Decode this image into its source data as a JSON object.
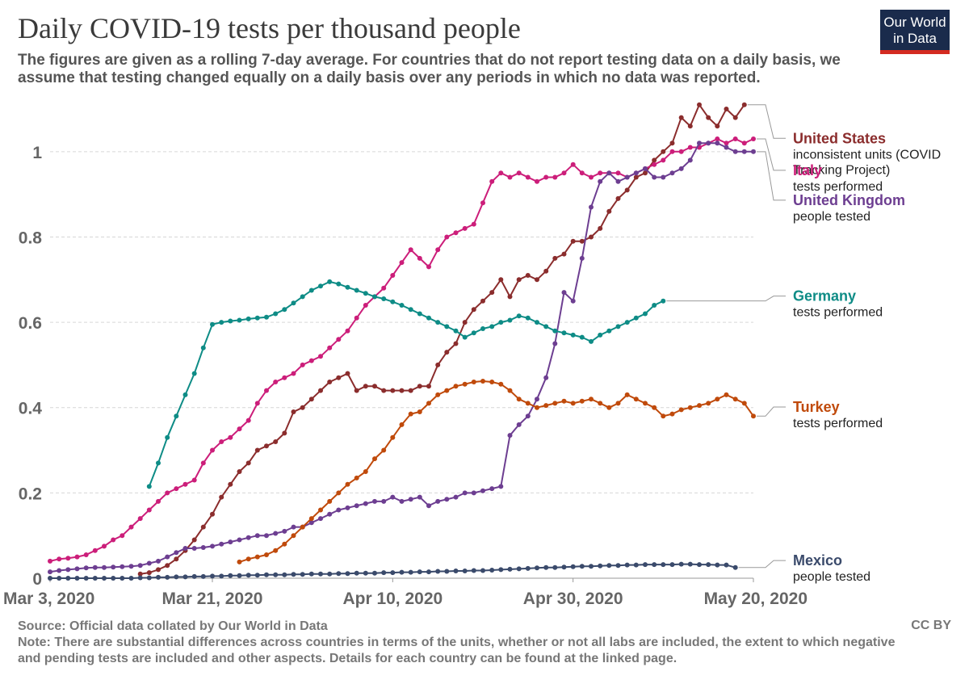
{
  "title": "Daily COVID-19 tests per thousand people",
  "subtitle_lines": [
    "The figures are given as a rolling 7-day average. For countries that do not report testing data on a daily basis, we",
    "assume that testing changed equally on a daily basis over any periods in which no data was reported."
  ],
  "logo": {
    "line1": "Our World",
    "line2": "in Data"
  },
  "footer": {
    "source": "Source: Official data collated by Our World in Data",
    "note1": "Note: There are substantial differences across countries in terms of the units, whether or not all labs are included, the extent to which negative",
    "note2": "and pending tests are included and other aspects. Details for each country can be found at the linked page.",
    "license": "CC BY"
  },
  "chart_data": {
    "type": "line",
    "title": "Daily COVID-19 tests per thousand people",
    "x_unit": "days since Mar 3, 2020",
    "xlim": [
      0,
      78
    ],
    "ylim": [
      0,
      1.1
    ],
    "y_ticks": [
      {
        "value": 0,
        "label": "0"
      },
      {
        "value": 0.2,
        "label": "0.2"
      },
      {
        "value": 0.4,
        "label": "0.4"
      },
      {
        "value": 0.6,
        "label": "0.6"
      },
      {
        "value": 0.8,
        "label": "0.8"
      },
      {
        "value": 1,
        "label": "1"
      }
    ],
    "x_ticks": [
      {
        "value": 0,
        "label": "Mar 3, 2020"
      },
      {
        "value": 18,
        "label": "Mar 21, 2020"
      },
      {
        "value": 38,
        "label": "Apr 10, 2020"
      },
      {
        "value": 58,
        "label": "Apr 30, 2020"
      },
      {
        "value": 78,
        "label": "May 20, 2020"
      }
    ],
    "grid": true,
    "series": [
      {
        "name": "United States",
        "unit_label": "inconsistent units (COVID",
        "unit_label2": "Tracking Project)",
        "color": "#8b2d2d",
        "label_y": 1.02,
        "x": [
          10,
          11,
          12,
          13,
          14,
          15,
          16,
          17,
          18,
          19,
          20,
          21,
          22,
          23,
          24,
          25,
          26,
          27,
          28,
          29,
          30,
          31,
          32,
          33,
          34,
          35,
          36,
          37,
          38,
          39,
          40,
          41,
          42,
          43,
          44,
          45,
          46,
          47,
          48,
          49,
          50,
          51,
          52,
          53,
          54,
          55,
          56,
          57,
          58,
          59,
          60,
          61,
          62,
          63,
          64,
          65,
          66,
          67,
          68,
          69,
          70,
          71,
          72,
          73,
          74,
          75,
          76,
          77
        ],
        "values": [
          0.01,
          0.013,
          0.02,
          0.03,
          0.045,
          0.065,
          0.09,
          0.12,
          0.15,
          0.19,
          0.22,
          0.25,
          0.27,
          0.3,
          0.31,
          0.32,
          0.34,
          0.39,
          0.4,
          0.42,
          0.44,
          0.46,
          0.47,
          0.48,
          0.44,
          0.45,
          0.45,
          0.44,
          0.44,
          0.44,
          0.44,
          0.45,
          0.45,
          0.5,
          0.53,
          0.55,
          0.6,
          0.63,
          0.65,
          0.67,
          0.7,
          0.66,
          0.7,
          0.71,
          0.7,
          0.72,
          0.75,
          0.76,
          0.79,
          0.79,
          0.8,
          0.82,
          0.86,
          0.89,
          0.91,
          0.94,
          0.95,
          0.98,
          1.0,
          1.02,
          1.08,
          1.06,
          1.11,
          1.08,
          1.06,
          1.1,
          1.08,
          1.11
        ]
      },
      {
        "name": "Italy",
        "unit_label": "tests performed",
        "color": "#cc1e7a",
        "label_y": 0.945,
        "x": [
          0,
          1,
          2,
          3,
          4,
          5,
          6,
          7,
          8,
          9,
          10,
          11,
          12,
          13,
          14,
          15,
          16,
          17,
          18,
          19,
          20,
          21,
          22,
          23,
          24,
          25,
          26,
          27,
          28,
          29,
          30,
          31,
          32,
          33,
          34,
          35,
          36,
          37,
          38,
          39,
          40,
          41,
          42,
          43,
          44,
          45,
          46,
          47,
          48,
          49,
          50,
          51,
          52,
          53,
          54,
          55,
          56,
          57,
          58,
          59,
          60,
          61,
          62,
          63,
          64,
          65,
          66,
          67,
          68,
          69,
          70,
          71,
          72,
          73,
          74,
          75,
          76,
          77,
          78
        ],
        "values": [
          0.04,
          0.045,
          0.047,
          0.05,
          0.055,
          0.065,
          0.075,
          0.09,
          0.1,
          0.12,
          0.14,
          0.16,
          0.18,
          0.2,
          0.21,
          0.22,
          0.23,
          0.27,
          0.3,
          0.32,
          0.33,
          0.35,
          0.37,
          0.41,
          0.44,
          0.46,
          0.47,
          0.48,
          0.5,
          0.51,
          0.52,
          0.54,
          0.56,
          0.58,
          0.61,
          0.64,
          0.66,
          0.68,
          0.71,
          0.74,
          0.77,
          0.75,
          0.73,
          0.77,
          0.8,
          0.81,
          0.82,
          0.83,
          0.88,
          0.93,
          0.95,
          0.94,
          0.95,
          0.94,
          0.93,
          0.94,
          0.94,
          0.95,
          0.97,
          0.95,
          0.94,
          0.95,
          0.95,
          0.95,
          0.94,
          0.95,
          0.96,
          0.97,
          0.98,
          1.0,
          1.0,
          1.01,
          1.01,
          1.02,
          1.03,
          1.02,
          1.03,
          1.02,
          1.03
        ]
      },
      {
        "name": "United Kingdom",
        "unit_label": "people tested",
        "color": "#6d3e91",
        "label_y": 0.875,
        "x": [
          0,
          1,
          2,
          3,
          4,
          5,
          6,
          7,
          8,
          9,
          10,
          11,
          12,
          13,
          14,
          15,
          16,
          17,
          18,
          19,
          20,
          21,
          22,
          23,
          24,
          25,
          26,
          27,
          28,
          29,
          30,
          31,
          32,
          33,
          34,
          35,
          36,
          37,
          38,
          39,
          40,
          41,
          42,
          43,
          44,
          45,
          46,
          47,
          48,
          49,
          50,
          51,
          52,
          53,
          54,
          55,
          56,
          57,
          58,
          59,
          60,
          61,
          62,
          63,
          64,
          65,
          66,
          67,
          68,
          69,
          70,
          71,
          72,
          73,
          74,
          75,
          76,
          77,
          78
        ],
        "values": [
          0.015,
          0.018,
          0.02,
          0.022,
          0.024,
          0.025,
          0.025,
          0.026,
          0.027,
          0.028,
          0.03,
          0.035,
          0.04,
          0.05,
          0.06,
          0.07,
          0.07,
          0.072,
          0.075,
          0.08,
          0.085,
          0.09,
          0.095,
          0.1,
          0.1,
          0.105,
          0.11,
          0.12,
          0.12,
          0.13,
          0.14,
          0.15,
          0.16,
          0.165,
          0.17,
          0.175,
          0.18,
          0.18,
          0.19,
          0.18,
          0.185,
          0.19,
          0.17,
          0.18,
          0.185,
          0.19,
          0.2,
          0.2,
          0.205,
          0.21,
          0.215,
          0.335,
          0.36,
          0.38,
          0.42,
          0.47,
          0.55,
          0.67,
          0.65,
          0.75,
          0.87,
          0.93,
          0.95,
          0.93,
          0.94,
          0.95,
          0.96,
          0.94,
          0.94,
          0.95,
          0.96,
          0.98,
          1.02,
          1.02,
          1.02,
          1.01,
          1.0,
          1.0,
          1.0
        ]
      },
      {
        "name": "Germany",
        "unit_label": "tests performed",
        "color": "#0e8c86",
        "label_y": 0.65,
        "x": [
          11,
          12,
          13,
          14,
          15,
          16,
          17,
          18,
          19,
          20,
          21,
          22,
          23,
          24,
          25,
          26,
          27,
          28,
          29,
          30,
          31,
          32,
          33,
          34,
          35,
          36,
          37,
          38,
          39,
          40,
          41,
          42,
          43,
          44,
          45,
          46,
          47,
          48,
          49,
          50,
          51,
          52,
          53,
          54,
          55,
          56,
          57,
          58,
          59,
          60,
          61,
          62,
          63,
          64,
          65,
          66,
          67,
          68
        ],
        "values": [
          0.215,
          0.27,
          0.33,
          0.38,
          0.43,
          0.48,
          0.54,
          0.595,
          0.6,
          0.603,
          0.605,
          0.608,
          0.61,
          0.612,
          0.62,
          0.63,
          0.645,
          0.66,
          0.675,
          0.685,
          0.695,
          0.69,
          0.682,
          0.675,
          0.668,
          0.66,
          0.655,
          0.648,
          0.64,
          0.63,
          0.62,
          0.61,
          0.6,
          0.59,
          0.58,
          0.565,
          0.575,
          0.585,
          0.59,
          0.6,
          0.605,
          0.615,
          0.61,
          0.6,
          0.59,
          0.58,
          0.575,
          0.57,
          0.565,
          0.555,
          0.57,
          0.58,
          0.59,
          0.6,
          0.61,
          0.62,
          0.64,
          0.65
        ]
      },
      {
        "name": "Turkey",
        "unit_label": "tests performed",
        "color": "#c04a0b",
        "label_y": 0.39,
        "x": [
          21,
          22,
          23,
          24,
          25,
          26,
          27,
          28,
          29,
          30,
          31,
          32,
          33,
          34,
          35,
          36,
          37,
          38,
          39,
          40,
          41,
          42,
          43,
          44,
          45,
          46,
          47,
          48,
          49,
          50,
          51,
          52,
          53,
          54,
          55,
          56,
          57,
          58,
          59,
          60,
          61,
          62,
          63,
          64,
          65,
          66,
          67,
          68,
          69,
          70,
          71,
          72,
          73,
          74,
          75,
          76,
          77,
          78
        ],
        "values": [
          0.038,
          0.045,
          0.05,
          0.055,
          0.065,
          0.08,
          0.1,
          0.12,
          0.14,
          0.16,
          0.18,
          0.2,
          0.22,
          0.235,
          0.25,
          0.28,
          0.3,
          0.33,
          0.36,
          0.385,
          0.39,
          0.41,
          0.43,
          0.44,
          0.45,
          0.455,
          0.46,
          0.462,
          0.46,
          0.455,
          0.44,
          0.42,
          0.41,
          0.4,
          0.405,
          0.41,
          0.415,
          0.41,
          0.415,
          0.42,
          0.41,
          0.4,
          0.41,
          0.43,
          0.42,
          0.41,
          0.4,
          0.38,
          0.385,
          0.395,
          0.4,
          0.405,
          0.41,
          0.42,
          0.43,
          0.42,
          0.41,
          0.38
        ]
      },
      {
        "name": "Mexico",
        "unit_label": "people tested",
        "color": "#3a4a6b",
        "label_y": 0.03,
        "x": [
          0,
          1,
          2,
          3,
          4,
          5,
          6,
          7,
          8,
          9,
          10,
          11,
          12,
          13,
          14,
          15,
          16,
          17,
          18,
          19,
          20,
          21,
          22,
          23,
          24,
          25,
          26,
          27,
          28,
          29,
          30,
          31,
          32,
          33,
          34,
          35,
          36,
          37,
          38,
          39,
          40,
          41,
          42,
          43,
          44,
          45,
          46,
          47,
          48,
          49,
          50,
          51,
          52,
          53,
          54,
          55,
          56,
          57,
          58,
          59,
          60,
          61,
          62,
          63,
          64,
          65,
          66,
          67,
          68,
          69,
          70,
          71,
          72,
          73,
          74,
          75,
          76
        ],
        "values": [
          0.0,
          0.0,
          0.0,
          0.0,
          0.0,
          0.0,
          0.0,
          0.0,
          0.0,
          0.0,
          0.001,
          0.001,
          0.002,
          0.002,
          0.003,
          0.003,
          0.004,
          0.004,
          0.005,
          0.005,
          0.006,
          0.006,
          0.007,
          0.007,
          0.008,
          0.008,
          0.008,
          0.009,
          0.009,
          0.01,
          0.01,
          0.01,
          0.011,
          0.011,
          0.012,
          0.012,
          0.012,
          0.013,
          0.013,
          0.014,
          0.014,
          0.015,
          0.015,
          0.016,
          0.016,
          0.017,
          0.017,
          0.018,
          0.018,
          0.019,
          0.02,
          0.021,
          0.022,
          0.023,
          0.024,
          0.025,
          0.025,
          0.026,
          0.027,
          0.028,
          0.028,
          0.029,
          0.03,
          0.03,
          0.031,
          0.031,
          0.032,
          0.032,
          0.032,
          0.032,
          0.033,
          0.033,
          0.032,
          0.032,
          0.031,
          0.031,
          0.025
        ]
      }
    ]
  }
}
